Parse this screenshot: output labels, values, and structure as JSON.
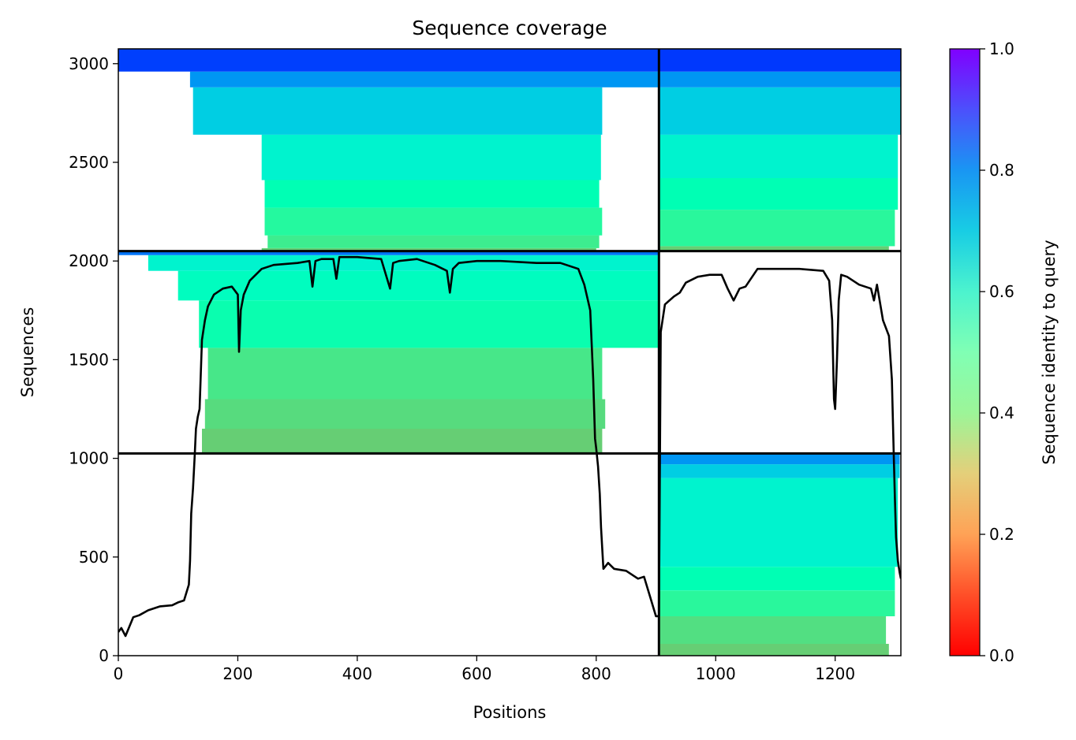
{
  "chart_data": {
    "type": "heatmap",
    "title": "Sequence coverage",
    "xlabel": "Positions",
    "ylabel": "Sequences",
    "xlim": [
      0,
      1310
    ],
    "ylim": [
      0,
      3075
    ],
    "x_ticks": [
      "0",
      "200",
      "400",
      "600",
      "800",
      "1000",
      "1200"
    ],
    "x_tick_values": [
      0,
      200,
      400,
      600,
      800,
      1000,
      1200
    ],
    "y_ticks": [
      "0",
      "500",
      "1000",
      "1500",
      "2000",
      "2500",
      "3000"
    ],
    "y_tick_values": [
      0,
      500,
      1000,
      1500,
      2000,
      2500,
      3000
    ],
    "colorbar": {
      "label": "Sequence identity to query",
      "range": [
        0,
        1
      ],
      "tick_labels": [
        "0.0",
        "0.2",
        "0.4",
        "0.6",
        "0.8",
        "1.0"
      ],
      "tick_values": [
        0,
        0.2,
        0.4,
        0.6,
        0.8,
        1.0
      ],
      "colormap": "rainbow_r"
    },
    "divider_x": [
      905
    ],
    "divider_y": [
      1025,
      2050
    ],
    "blocks": [
      {
        "name": "A",
        "x_range": [
          0,
          905
        ],
        "y_range": [
          2050,
          3075
        ],
        "bands": [
          {
            "y": [
              2050,
              2065
            ],
            "x": [
              240,
              800
            ],
            "identity": 0.3
          },
          {
            "y": [
              2065,
              2130
            ],
            "x": [
              250,
              805
            ],
            "identity": 0.38
          },
          {
            "y": [
              2130,
              2270
            ],
            "x": [
              245,
              810
            ],
            "identity": 0.43
          },
          {
            "y": [
              2270,
              2410
            ],
            "x": [
              245,
              805
            ],
            "identity": 0.5
          },
          {
            "y": [
              2410,
              2640
            ],
            "x": [
              240,
              808
            ],
            "identity": 0.6
          },
          {
            "y": [
              2640,
              2880
            ],
            "x": [
              125,
              810
            ],
            "identity": 0.7
          },
          {
            "y": [
              2880,
              2960
            ],
            "x": [
              120,
              905
            ],
            "identity": 0.8
          },
          {
            "y": [
              2960,
              3075
            ],
            "x": [
              0,
              905
            ],
            "identity": 0.92
          }
        ]
      },
      {
        "name": "B",
        "x_range": [
          905,
          1310
        ],
        "y_range": [
          2050,
          3075
        ],
        "bands": [
          {
            "y": [
              2050,
              2075
            ],
            "x": [
              905,
              1290
            ],
            "identity": 0.3
          },
          {
            "y": [
              2075,
              2260
            ],
            "x": [
              905,
              1300
            ],
            "identity": 0.42
          },
          {
            "y": [
              2260,
              2420
            ],
            "x": [
              905,
              1305
            ],
            "identity": 0.5
          },
          {
            "y": [
              2420,
              2640
            ],
            "x": [
              905,
              1305
            ],
            "identity": 0.6
          },
          {
            "y": [
              2640,
              2880
            ],
            "x": [
              905,
              1310
            ],
            "identity": 0.7
          },
          {
            "y": [
              2880,
              2960
            ],
            "x": [
              905,
              1310
            ],
            "identity": 0.8
          },
          {
            "y": [
              2960,
              3075
            ],
            "x": [
              905,
              1310
            ],
            "identity": 0.93
          }
        ]
      },
      {
        "name": "C",
        "x_range": [
          0,
          905
        ],
        "y_range": [
          1025,
          2050
        ],
        "bands": [
          {
            "y": [
              1025,
              1150
            ],
            "x": [
              140,
              810
            ],
            "identity": 0.3
          },
          {
            "y": [
              1150,
              1300
            ],
            "x": [
              145,
              815
            ],
            "identity": 0.33
          },
          {
            "y": [
              1300,
              1560
            ],
            "x": [
              150,
              810
            ],
            "identity": 0.36
          },
          {
            "y": [
              1560,
              1800
            ],
            "x": [
              135,
              905
            ],
            "identity": 0.48
          },
          {
            "y": [
              1800,
              1950
            ],
            "x": [
              100,
              905
            ],
            "identity": 0.54
          },
          {
            "y": [
              1950,
              2030
            ],
            "x": [
              50,
              905
            ],
            "identity": 0.6
          },
          {
            "y": [
              2030,
              2050
            ],
            "x": [
              0,
              905
            ],
            "identity": 0.85
          }
        ]
      },
      {
        "name": "D",
        "x_range": [
          905,
          1310
        ],
        "y_range": [
          0,
          1025
        ],
        "bands": [
          {
            "y": [
              0,
              60
            ],
            "x": [
              905,
              1290
            ],
            "identity": 0.3
          },
          {
            "y": [
              60,
              200
            ],
            "x": [
              905,
              1285
            ],
            "identity": 0.34
          },
          {
            "y": [
              200,
              330
            ],
            "x": [
              905,
              1300
            ],
            "identity": 0.42
          },
          {
            "y": [
              330,
              450
            ],
            "x": [
              905,
              1300
            ],
            "identity": 0.5
          },
          {
            "y": [
              450,
              900
            ],
            "x": [
              905,
              1305
            ],
            "identity": 0.6
          },
          {
            "y": [
              900,
              970
            ],
            "x": [
              905,
              1308
            ],
            "identity": 0.7
          },
          {
            "y": [
              970,
              1025
            ],
            "x": [
              905,
              1308
            ],
            "identity": 0.8
          }
        ]
      }
    ],
    "coverage_line": {
      "name": "coverage",
      "x": [
        0,
        5,
        12,
        25,
        35,
        50,
        70,
        90,
        100,
        110,
        115,
        118,
        120,
        122,
        125,
        128,
        130,
        133,
        136,
        140,
        145,
        150,
        160,
        175,
        190,
        200,
        202,
        205,
        210,
        220,
        240,
        260,
        280,
        300,
        320,
        325,
        330,
        340,
        360,
        365,
        370,
        400,
        440,
        455,
        460,
        470,
        500,
        530,
        550,
        555,
        560,
        570,
        600,
        640,
        700,
        740,
        770,
        780,
        790,
        795,
        798,
        800,
        803,
        806,
        808,
        812,
        820,
        830,
        850,
        870,
        880,
        890,
        900,
        905,
        908,
        915,
        930,
        940,
        950,
        970,
        990,
        1010,
        1020,
        1030,
        1040,
        1050,
        1070,
        1100,
        1140,
        1180,
        1190,
        1195,
        1198,
        1200,
        1203,
        1206,
        1210,
        1220,
        1240,
        1260,
        1265,
        1270,
        1280,
        1290,
        1295,
        1298,
        1300,
        1302,
        1305,
        1308,
        1310
      ],
      "y": [
        120,
        140,
        100,
        195,
        205,
        230,
        250,
        255,
        270,
        280,
        330,
        360,
        480,
        720,
        850,
        1020,
        1150,
        1210,
        1250,
        1600,
        1700,
        1770,
        1830,
        1860,
        1870,
        1830,
        1540,
        1750,
        1830,
        1900,
        1960,
        1980,
        1985,
        1990,
        2000,
        1870,
        2000,
        2010,
        2010,
        1910,
        2020,
        2020,
        2010,
        1860,
        1990,
        2000,
        2010,
        1980,
        1950,
        1840,
        1960,
        1990,
        2000,
        2000,
        1990,
        1990,
        1960,
        1880,
        1750,
        1400,
        1100,
        1050,
        960,
        820,
        650,
        440,
        470,
        440,
        430,
        390,
        400,
        300,
        200,
        200,
        1640,
        1780,
        1820,
        1840,
        1890,
        1920,
        1930,
        1930,
        1860,
        1800,
        1860,
        1870,
        1960,
        1960,
        1960,
        1950,
        1900,
        1700,
        1300,
        1250,
        1500,
        1800,
        1930,
        1920,
        1880,
        1860,
        1800,
        1880,
        1700,
        1620,
        1400,
        1030,
        800,
        600,
        480,
        420,
        390
      ]
    }
  }
}
